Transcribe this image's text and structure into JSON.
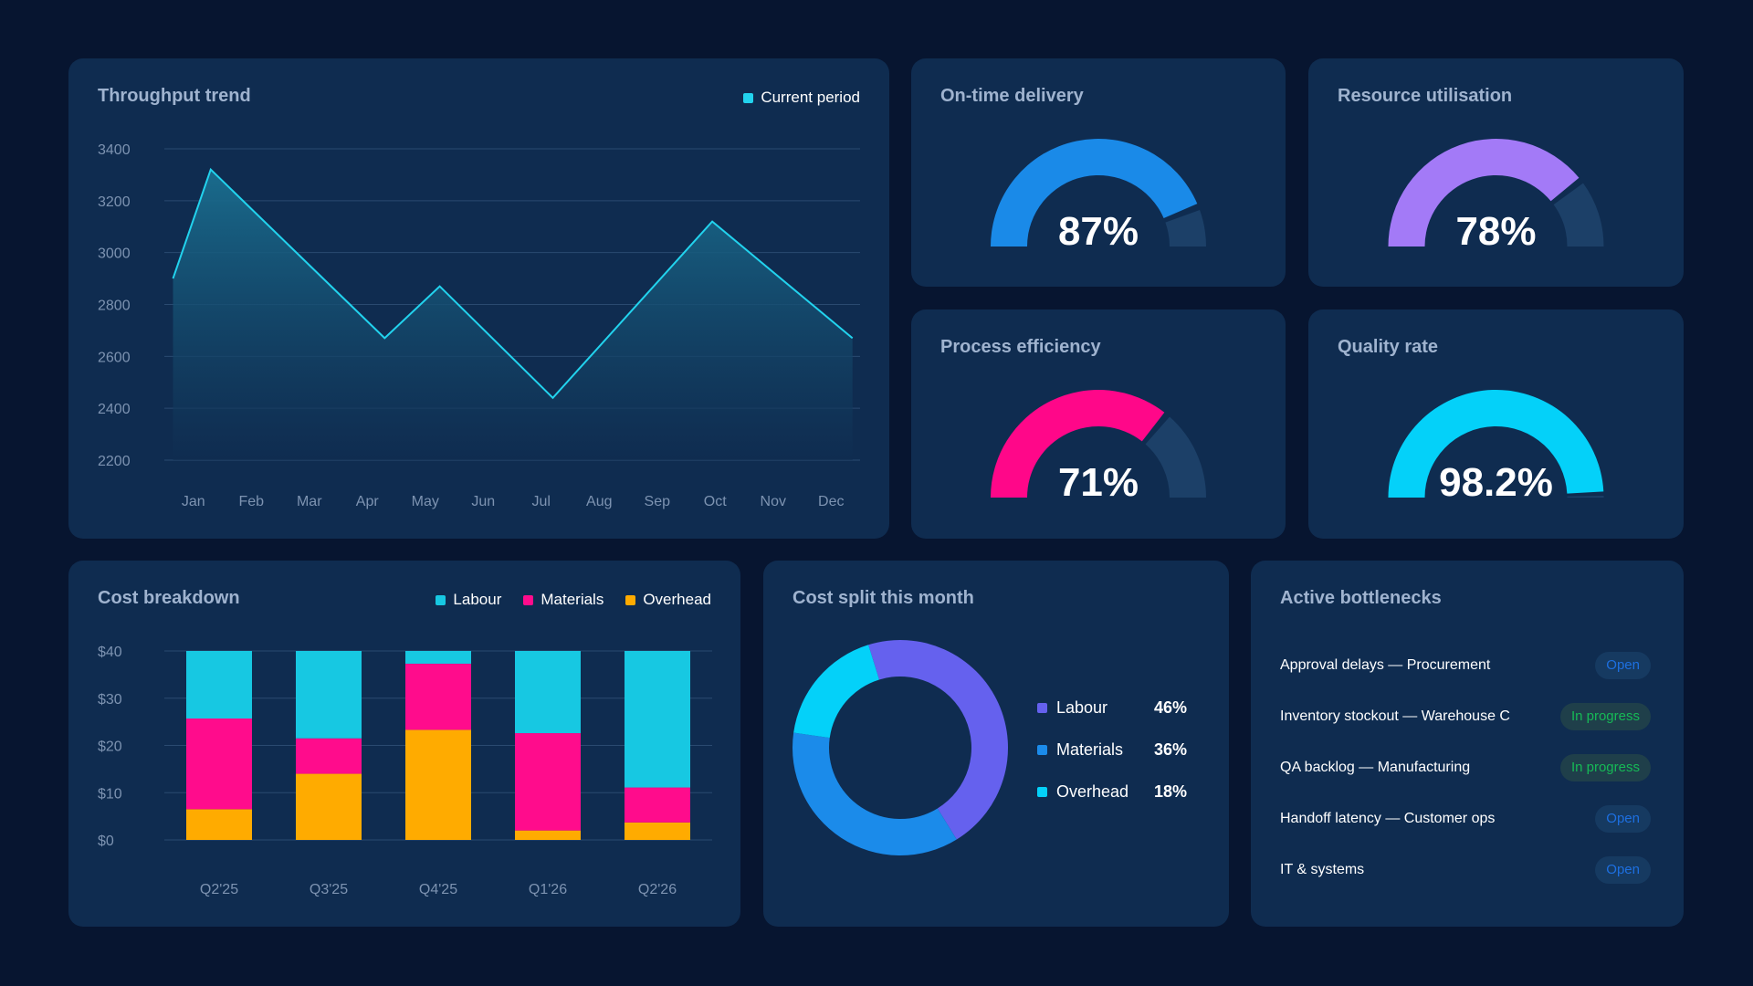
{
  "throughput": {
    "title": "Throughput trend",
    "legend_label": "Current period",
    "color": "#22d3ee"
  },
  "chart_data": [
    {
      "type": "area",
      "title": "Throughput trend",
      "categories": [
        "Jan",
        "Feb",
        "Mar",
        "Apr",
        "May",
        "Jun",
        "Jul",
        "Aug",
        "Sep",
        "Oct",
        "Nov",
        "Dec"
      ],
      "x": [
        0,
        1,
        2,
        3,
        4,
        5,
        6,
        7,
        8,
        9,
        10,
        11
      ],
      "series": [
        {
          "name": "Current period",
          "points": [
            [
              -0.35,
              2900
            ],
            [
              0.3,
              3320
            ],
            [
              3.3,
              2670
            ],
            [
              4.25,
              2870
            ],
            [
              6.2,
              2440
            ],
            [
              8.95,
              3120
            ],
            [
              11.37,
              2670
            ]
          ]
        }
      ],
      "yticks": [
        3400,
        3200,
        3000,
        2800,
        2600,
        2400,
        2200
      ],
      "ylim": [
        2200,
        3400
      ],
      "grid": true,
      "legend": "top-right"
    },
    {
      "type": "bar",
      "stacked": true,
      "title": "Cost breakdown",
      "categories": [
        "Q2'25",
        "Q3'25",
        "Q4'25",
        "Q1'26",
        "Q2'26"
      ],
      "series": [
        {
          "name": "Overhead",
          "values": [
            6.5,
            14,
            23.3,
            2,
            3.7
          ],
          "color": "#ffab00"
        },
        {
          "name": "Materials",
          "values": [
            19.2,
            7.5,
            14,
            20.6,
            7.4
          ],
          "color": "#ff0c8c"
        },
        {
          "name": "Labour",
          "values": [
            14.3,
            18.5,
            2.7,
            17.4,
            28.9
          ],
          "color": "#17c8e2"
        }
      ],
      "yticks": [
        "$40",
        "$30",
        "$20",
        "$10",
        "$0"
      ],
      "ylim": [
        0,
        40
      ],
      "grid": true,
      "legend": "top-right"
    },
    {
      "type": "pie",
      "donut": true,
      "title": "Cost split this month",
      "labels": [
        "Labour",
        "Materials",
        "Overhead"
      ],
      "values": [
        46,
        36,
        18
      ],
      "colors": [
        "#6561ee",
        "#1b8bea",
        "#04d1f9"
      ]
    }
  ],
  "gauges": [
    {
      "title": "On-time delivery",
      "value_text": "87%",
      "value": 0.87,
      "color": "#1a8ae8"
    },
    {
      "title": "Resource utilisation",
      "value_text": "78%",
      "value": 0.78,
      "color": "#a37af7"
    },
    {
      "title": "Process efficiency",
      "value_text": "71%",
      "value": 0.71,
      "color": "#ff0789"
    },
    {
      "title": "Quality rate",
      "value_text": "98.2%",
      "value": 0.982,
      "color": "#04d1f9"
    }
  ],
  "gauge_track_color": "#1c4068",
  "cost_breakdown": {
    "title": "Cost breakdown",
    "legend": [
      {
        "label": "Labour",
        "color": "#17c8e2"
      },
      {
        "label": "Materials",
        "color": "#ff0c8c"
      },
      {
        "label": "Overhead",
        "color": "#ffab00"
      }
    ]
  },
  "cost_split": {
    "title": "Cost split this month",
    "rows": [
      {
        "label": "Labour",
        "pct": "46%",
        "color": "#6561ee"
      },
      {
        "label": "Materials",
        "pct": "36%",
        "color": "#1b8bea"
      },
      {
        "label": "Overhead",
        "pct": "18%",
        "color": "#04d1f9"
      }
    ]
  },
  "bottlenecks": {
    "title": "Active bottlenecks",
    "items": [
      {
        "text": "Approval delays — Procurement",
        "status": "Open",
        "kind": "open"
      },
      {
        "text": "Inventory stockout — Warehouse C",
        "status": "In progress",
        "kind": "prog"
      },
      {
        "text": "QA backlog — Manufacturing",
        "status": "In progress",
        "kind": "prog"
      },
      {
        "text": "Handoff latency — Customer ops",
        "status": "Open",
        "kind": "open"
      },
      {
        "text": "IT & systems",
        "status": "Open",
        "kind": "open"
      }
    ]
  }
}
